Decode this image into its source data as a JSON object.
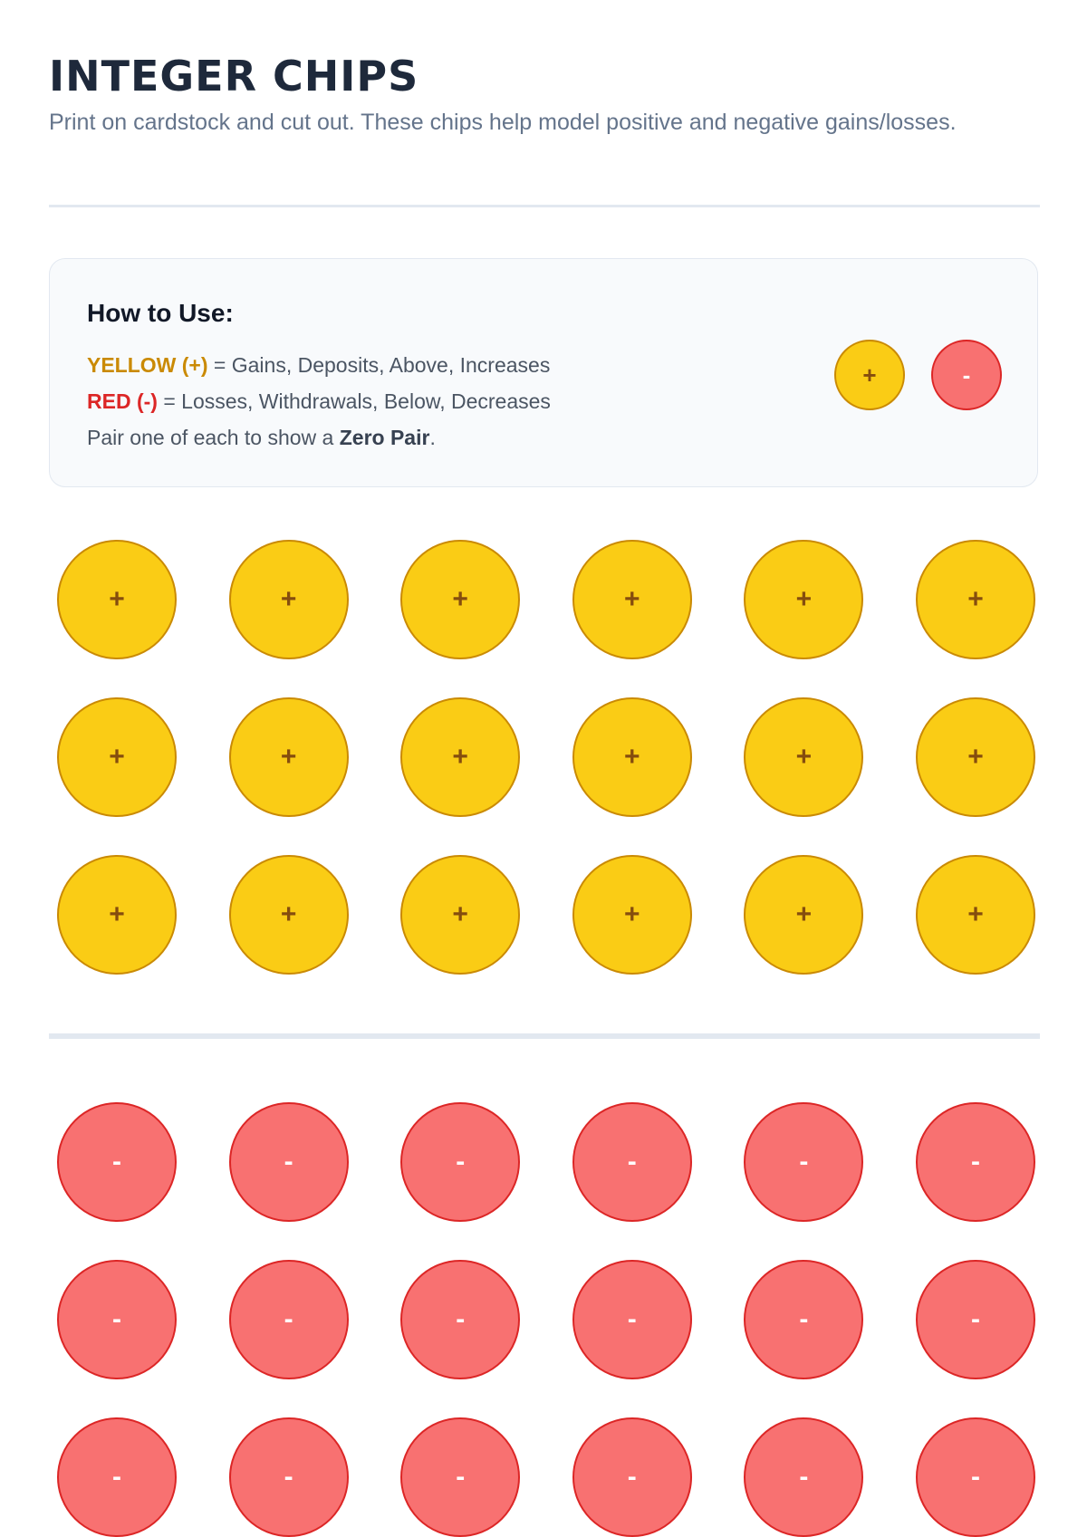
{
  "header": {
    "title": "INTEGER CHIPS",
    "subtitle": "Print on cardstock and cut out. These chips help model positive and negative gains/losses."
  },
  "legend": {
    "heading": "How to Use:",
    "yellow_key": "YELLOW (+)",
    "yellow_meaning": " = Gains, Deposits, Above, Increases",
    "red_key": "RED (-)",
    "red_meaning": " = Losses, Withdrawals, Below, Decreases",
    "pair_prefix": "Pair one of each to show a ",
    "pair_emphasis": "Zero Pair",
    "pair_suffix": ".",
    "sample_positive": "+",
    "sample_negative": "-"
  },
  "chips": {
    "positive_symbol": "+",
    "negative_symbol": "-",
    "columns": 6,
    "positive_rows": 3,
    "negative_rows": 3
  },
  "colors": {
    "positive_fill": "#facc15",
    "positive_border": "#ca8a04",
    "negative_fill": "#f87171",
    "negative_border": "#dc2626",
    "title": "#1e293b"
  }
}
